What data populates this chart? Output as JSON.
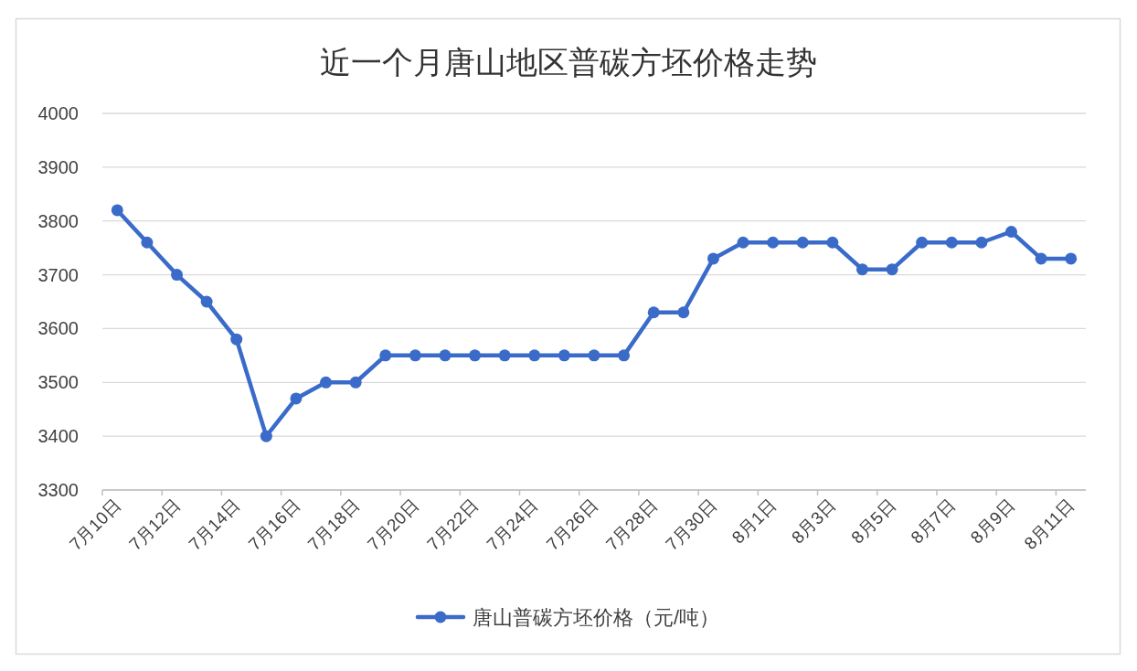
{
  "chart_data": {
    "type": "line",
    "title": "近一个月唐山地区普碳方坯价格走势",
    "categories": [
      "7月10日",
      null,
      "7月12日",
      null,
      "7月14日",
      null,
      "7月16日",
      null,
      "7月18日",
      null,
      "7月20日",
      null,
      "7月22日",
      null,
      "7月24日",
      null,
      "7月26日",
      null,
      "7月28日",
      null,
      "7月30日",
      null,
      "8月1日",
      null,
      "8月3日",
      null,
      "8月5日",
      null,
      "8月7日",
      null,
      "8月9日",
      null,
      "8月11日"
    ],
    "series": [
      {
        "name": "唐山普碳方坯价格（元/吨）",
        "color": "#3a6bc9",
        "values": [
          3820,
          3760,
          3700,
          3650,
          3580,
          3400,
          3470,
          3500,
          3500,
          3550,
          3550,
          3550,
          3550,
          3550,
          3550,
          3550,
          3550,
          3550,
          3630,
          3630,
          3730,
          3760,
          3760,
          3760,
          3760,
          3710,
          3710,
          3760,
          3760,
          3760,
          3780,
          3730,
          3730
        ]
      }
    ],
    "ylim": [
      3300,
      4000
    ],
    "yticks": [
      3300,
      3400,
      3500,
      3600,
      3700,
      3800,
      3900,
      4000
    ],
    "grid": "y",
    "legend": "bottom",
    "marker": "circle",
    "line_style": "solid"
  }
}
